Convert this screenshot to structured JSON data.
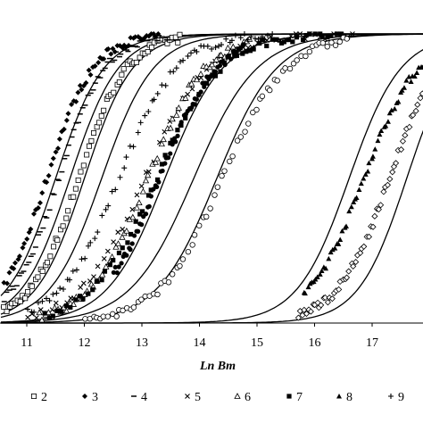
{
  "chart_data": {
    "type": "scatter",
    "title": "",
    "xlabel": "Ln Bm",
    "ylabel": "",
    "xlim": [
      10.55,
      18.3
    ],
    "ylim": [
      0,
      1
    ],
    "x_ticks": [
      "11",
      "12",
      "13",
      "14",
      "15",
      "16",
      "17"
    ],
    "grid": false,
    "legend_position": "bottom",
    "legend": [
      {
        "marker": "□",
        "label": "2"
      },
      {
        "marker": "◆",
        "label": "3"
      },
      {
        "marker": "-",
        "label": "4"
      },
      {
        "marker": "×",
        "label": "5"
      },
      {
        "marker": "△",
        "label": "6"
      },
      {
        "marker": "■",
        "label": "7"
      },
      {
        "marker": "▲",
        "label": "8"
      },
      {
        "marker": "+",
        "label": "9"
      }
    ],
    "series": [
      {
        "name": "2",
        "marker": "square-open",
        "mid": 11.9,
        "scale": 0.42,
        "x_range": [
          10.6,
          13.7
        ]
      },
      {
        "name": "3",
        "marker": "diamond-filled",
        "mid": 11.35,
        "scale": 0.4,
        "x_range": [
          10.6,
          13.3
        ]
      },
      {
        "name": "4",
        "marker": "dash",
        "mid": 11.55,
        "scale": 0.4,
        "x_range": [
          10.6,
          13.5
        ]
      },
      {
        "name": "5",
        "marker": "cross",
        "mid": 13.05,
        "scale": 0.55,
        "x_range": [
          11.0,
          16.7
        ]
      },
      {
        "name": "6",
        "marker": "triangle-open",
        "mid": 13.1,
        "scale": 0.5,
        "x_range": [
          11.2,
          14.9
        ]
      },
      {
        "name": "7",
        "marker": "square-filled",
        "mid": 13.25,
        "scale": 0.55,
        "x_range": [
          11.3,
          16.5
        ]
      },
      {
        "name": "8",
        "marker": "triangle-filled",
        "mid": 16.85,
        "scale": 0.48,
        "x_range": [
          15.8,
          18.3
        ]
      },
      {
        "name": "9",
        "marker": "plus",
        "mid": 12.6,
        "scale": 0.5,
        "x_range": [
          11.0,
          15.3
        ]
      },
      {
        "name": "",
        "marker": "circle-open",
        "mid": 14.4,
        "scale": 0.55,
        "x_range": [
          12.0,
          16.6
        ]
      },
      {
        "name": "",
        "marker": "diamond-open",
        "mid": 17.3,
        "scale": 0.45,
        "x_range": [
          15.7,
          18.3
        ]
      },
      {
        "name": "",
        "marker": "circle-filled",
        "mid": 13.3,
        "scale": 0.5,
        "x_range": [
          12.5,
          14.8
        ]
      }
    ],
    "fitted_curves": [
      {
        "mid": 11.75,
        "scale": 0.42
      },
      {
        "mid": 12.0,
        "scale": 0.42
      },
      {
        "mid": 11.5,
        "scale": 0.42
      },
      {
        "mid": 12.3,
        "scale": 0.45
      },
      {
        "mid": 13.4,
        "scale": 0.5
      },
      {
        "mid": 13.9,
        "scale": 0.55
      },
      {
        "mid": 14.3,
        "scale": 0.52
      },
      {
        "mid": 16.6,
        "scale": 0.45
      },
      {
        "mid": 17.6,
        "scale": 0.42
      }
    ]
  }
}
